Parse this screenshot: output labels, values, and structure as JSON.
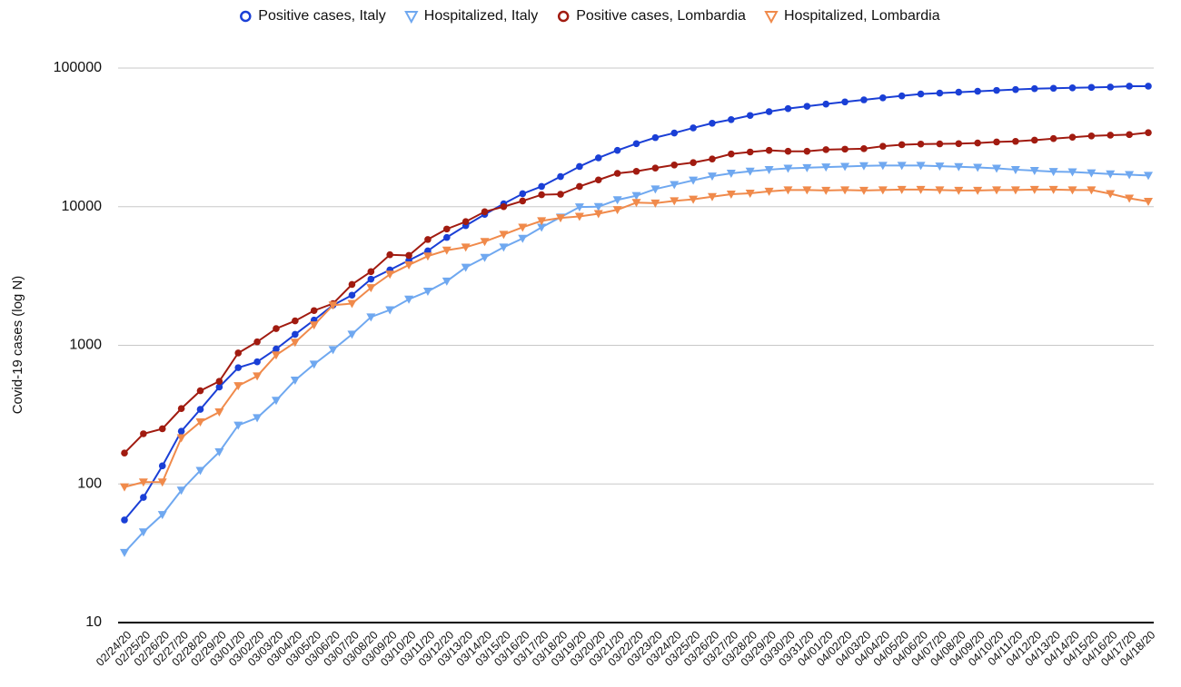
{
  "chart_data": {
    "type": "line",
    "log_scale": true,
    "grid": true,
    "legend_position": "top",
    "y_label": "Covid-19 cases (log N)",
    "ylim": [
      10,
      100000
    ],
    "yticks": [
      10,
      100,
      1000,
      10000,
      100000
    ],
    "categories": [
      "02/24/20",
      "02/25/20",
      "02/26/20",
      "02/27/20",
      "02/28/20",
      "02/29/20",
      "03/01/20",
      "03/02/20",
      "03/03/20",
      "03/04/20",
      "03/05/20",
      "03/06/20",
      "03/07/20",
      "03/08/20",
      "03/09/20",
      "03/10/20",
      "03/11/20",
      "03/12/20",
      "03/13/20",
      "03/14/20",
      "03/15/20",
      "03/16/20",
      "03/17/20",
      "03/18/20",
      "03/19/20",
      "03/20/20",
      "03/21/20",
      "03/22/20",
      "03/23/20",
      "03/24/20",
      "03/25/20",
      "03/26/20",
      "03/27/20",
      "03/28/20",
      "03/29/20",
      "03/30/20",
      "03/31/20",
      "04/01/20",
      "04/02/20",
      "04/03/20",
      "04/04/20",
      "04/05/20",
      "04/06/20",
      "04/07/20",
      "04/08/20",
      "04/09/20",
      "04/10/20",
      "04/11/20",
      "04/12/20",
      "04/13/20",
      "04/14/20",
      "04/15/20",
      "04/16/20",
      "04/17/20",
      "04/18/20"
    ],
    "series": [
      {
        "name": "Positive cases, Italy",
        "color": "#1a3fd6",
        "marker": "circle",
        "values": [
          55,
          80,
          135,
          240,
          345,
          500,
          690,
          760,
          940,
          1200,
          1520,
          1950,
          2300,
          3000,
          3500,
          4100,
          4800,
          6000,
          7300,
          8800,
          10500,
          12400,
          14000,
          16500,
          19500,
          22500,
          25500,
          28500,
          31500,
          34000,
          37000,
          40000,
          42500,
          45500,
          48500,
          51000,
          53000,
          55000,
          57000,
          59000,
          61000,
          63000,
          65000,
          66000,
          67000,
          68000,
          69000,
          70000,
          71000,
          71500,
          72000,
          72500,
          73000,
          74000,
          74000
        ]
      },
      {
        "name": "Hospitalized, Italy",
        "color": "#6fa8f0",
        "marker": "triangle-down",
        "values": [
          32,
          45,
          60,
          90,
          125,
          170,
          265,
          300,
          400,
          560,
          730,
          930,
          1200,
          1600,
          1800,
          2150,
          2450,
          2900,
          3650,
          4300,
          5100,
          5900,
          7100,
          8400,
          9950,
          10000,
          11200,
          12000,
          13400,
          14400,
          15500,
          16600,
          17400,
          18000,
          18500,
          18900,
          19100,
          19300,
          19500,
          19700,
          19800,
          19800,
          19800,
          19600,
          19400,
          19200,
          18900,
          18500,
          18200,
          17900,
          17800,
          17500,
          17200,
          17000,
          16800
        ]
      },
      {
        "name": "Positive cases, Lombardia",
        "color": "#a11b10",
        "marker": "circle",
        "values": [
          167,
          230,
          250,
          350,
          470,
          550,
          880,
          1060,
          1320,
          1500,
          1780,
          2000,
          2750,
          3400,
          4500,
          4450,
          5800,
          6900,
          7800,
          9200,
          10000,
          11000,
          12200,
          12300,
          14000,
          15600,
          17400,
          18000,
          19000,
          20000,
          20800,
          22100,
          24000,
          24800,
          25500,
          25100,
          25100,
          25800,
          26000,
          26200,
          27300,
          28000,
          28300,
          28400,
          28500,
          28800,
          29300,
          29600,
          30200,
          31000,
          31700,
          32400,
          32800,
          33100,
          34200
        ]
      },
      {
        "name": "Hospitalized, Lombardia",
        "color": "#f08a4b",
        "marker": "triangle-down",
        "values": [
          95,
          103,
          103,
          215,
          280,
          330,
          510,
          600,
          850,
          1050,
          1400,
          1950,
          2000,
          2600,
          3250,
          3800,
          4400,
          4850,
          5100,
          5600,
          6300,
          7100,
          7900,
          8300,
          8500,
          8900,
          9500,
          10700,
          10600,
          11000,
          11300,
          11800,
          12300,
          12500,
          12900,
          13200,
          13200,
          13100,
          13200,
          13100,
          13200,
          13300,
          13300,
          13200,
          13100,
          13100,
          13200,
          13200,
          13300,
          13300,
          13200,
          13200,
          12400,
          11500,
          10900
        ]
      }
    ]
  }
}
